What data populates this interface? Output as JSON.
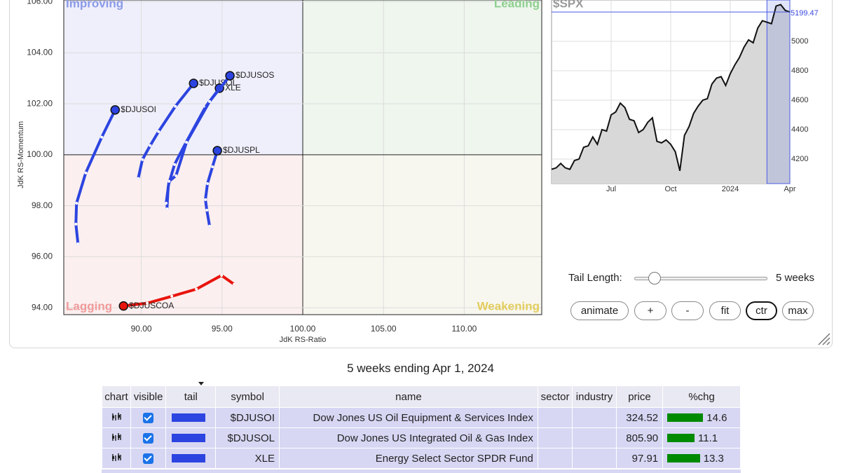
{
  "chart_data": [
    {
      "type": "rrg",
      "x_label": "JdK RS-Ratio",
      "y_label": "JdK RS-Momentum",
      "annotations": [
        "Improving",
        "Leading",
        "Lagging",
        "Weakening"
      ],
      "xlim": [
        85.2,
        114.8
      ],
      "ylim": [
        93.73,
        106.07
      ],
      "xticks": [
        {
          "value": 90,
          "label": "90.00"
        },
        {
          "value": 95,
          "label": "95.00"
        },
        {
          "value": 100,
          "label": "100.00"
        },
        {
          "value": 105,
          "label": "105.00"
        },
        {
          "value": 110,
          "label": "110.00"
        }
      ],
      "yticks": [
        {
          "value": 94,
          "label": "94.00"
        },
        {
          "value": 96,
          "label": "96.00"
        },
        {
          "value": 98,
          "label": "98.00"
        },
        {
          "value": 100,
          "label": "100.00"
        },
        {
          "value": 102,
          "label": "102.00"
        },
        {
          "value": 104,
          "label": "104.00"
        },
        {
          "value": 106,
          "label": "106.00"
        }
      ],
      "grid": true,
      "series": [
        {
          "name": "$DJUSOI",
          "color": "#2c44e0",
          "x": [
            86.08,
            85.95,
            85.99,
            86.56,
            87.55,
            88.38
          ],
          "values": [
            96.51,
            97.28,
            98.1,
            99.29,
            100.69,
            101.76
          ]
        },
        {
          "name": "$DJUSOL",
          "color": "#2c44e0",
          "x": [
            89.81,
            90.07,
            90.55,
            91.07,
            92.11,
            93.24
          ],
          "values": [
            99.07,
            99.81,
            100.36,
            100.91,
            101.9,
            102.8
          ]
        },
        {
          "name": "XLE",
          "color": "#2c44e0",
          "x": [
            91.59,
            91.67,
            92.06,
            92.76,
            93.97,
            94.84
          ],
          "values": [
            97.88,
            98.79,
            99.62,
            100.47,
            101.87,
            102.61
          ]
        },
        {
          "name": "$DJUSOS",
          "color": "#2c44e0",
          "x": [
            91.54,
            91.72,
            92.15,
            92.8,
            94.23,
            95.49
          ],
          "values": [
            98.1,
            98.96,
            99.18,
            100.49,
            102.09,
            103.1
          ]
        },
        {
          "name": "$DJUSPL",
          "color": "#2c44e0",
          "x": [
            94.23,
            94.06,
            93.97,
            94.1,
            94.41,
            94.71
          ],
          "values": [
            97.2,
            97.83,
            98.24,
            98.87,
            99.53,
            100.16
          ]
        },
        {
          "name": "$DJUSCOA",
          "color": "#e8140c",
          "x": [
            95.75,
            94.97,
            93.41,
            91.89,
            90.37,
            88.9
          ],
          "values": [
            94.92,
            95.27,
            94.73,
            94.45,
            94.18,
            94.07
          ]
        }
      ]
    },
    {
      "type": "line",
      "title": "$SPX",
      "color": "#111111",
      "categories": [
        null,
        null,
        null,
        null,
        null,
        null,
        null,
        null,
        null,
        null,
        null,
        null,
        null,
        "Jul",
        null,
        null,
        null,
        null,
        null,
        null,
        null,
        null,
        null,
        null,
        null,
        null,
        "Oct",
        null,
        null,
        null,
        null,
        null,
        null,
        null,
        null,
        null,
        null,
        null,
        null,
        "2024",
        null,
        null,
        null,
        null,
        null,
        null,
        null,
        null,
        null,
        null,
        null,
        null,
        "Apr"
      ],
      "values": [
        4130,
        4140,
        4170,
        4140,
        4130,
        4190,
        4200,
        4280,
        4290,
        4350,
        4300,
        4400,
        4390,
        4500,
        4520,
        4580,
        4550,
        4470,
        4460,
        4380,
        4400,
        4450,
        4480,
        4320,
        4310,
        4330,
        4300,
        4250,
        4120,
        4360,
        4420,
        4510,
        4560,
        4600,
        4610,
        4710,
        4750,
        4760,
        4700,
        4780,
        4840,
        4890,
        4960,
        5010,
        4990,
        5090,
        5140,
        5130,
        5120,
        5240,
        5250,
        5210,
        5199.47
      ],
      "ylim": [
        4033,
        5281
      ],
      "yticks": [
        4200,
        4400,
        4600,
        4800,
        5000
      ],
      "grid": true
    }
  ],
  "controls": {
    "tail_length_label": "Tail Length:",
    "tail_length_value": "5 weeks",
    "buttons": [
      "animate",
      "+",
      "-",
      "fit",
      "ctr",
      "max"
    ]
  },
  "caption": "5 weeks ending Apr 1, 2024",
  "table": {
    "columns": [
      "chart",
      "visible",
      "tail",
      "symbol",
      "name",
      "sector",
      "industry",
      "price",
      "%chg"
    ],
    "rows": [
      {
        "symbol": "$DJUSOI",
        "name": "Dow Jones US Oil Equipment & Services Index",
        "price": "324.52",
        "chg": 14.6
      },
      {
        "symbol": "$DJUSOL",
        "name": "Dow Jones US Integrated Oil & Gas Index",
        "price": "805.90",
        "chg": 11.1
      },
      {
        "symbol": "XLE",
        "name": "Energy Select Sector SPDR Fund",
        "price": "97.91",
        "chg": 13.3
      }
    ]
  }
}
